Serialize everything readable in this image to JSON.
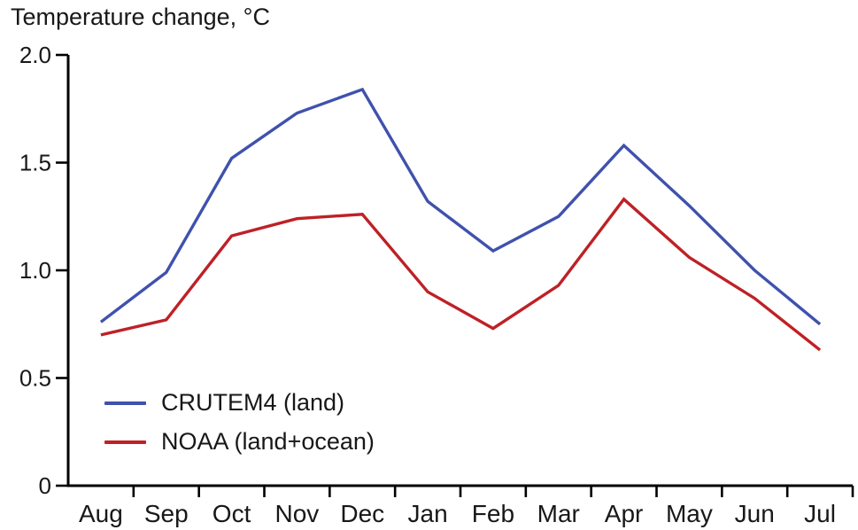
{
  "page": {
    "background": "#ffffff"
  },
  "chart": {
    "title": "Temperature change, °C"
  },
  "legend": {
    "items": [
      {
        "label": "CRUTEM4 (land)",
        "color": "#4051ad"
      },
      {
        "label": "NOAA (land+ocean)",
        "color": "#be2126"
      }
    ]
  },
  "chart_data": {
    "type": "line",
    "title": "Temperature change, °C",
    "categories": [
      "Aug",
      "Sep",
      "Oct",
      "Nov",
      "Dec",
      "Jan",
      "Feb",
      "Mar",
      "Apr",
      "May",
      "Jun",
      "Jul"
    ],
    "series": [
      {
        "name": "CRUTEM4 (land)",
        "color": "#4051ad",
        "values": [
          0.76,
          0.99,
          1.52,
          1.73,
          1.84,
          1.32,
          1.09,
          1.25,
          1.58,
          1.3,
          1.0,
          0.75
        ]
      },
      {
        "name": "NOAA (land+ocean)",
        "color": "#be2126",
        "values": [
          0.7,
          0.77,
          1.16,
          1.24,
          1.26,
          0.9,
          0.73,
          0.93,
          1.33,
          1.06,
          0.87,
          0.63
        ]
      }
    ],
    "xlabel": "",
    "ylabel": "Temperature change, °C",
    "ylim": [
      0,
      2.0
    ],
    "yticks": [
      {
        "value": 0,
        "label": "0"
      },
      {
        "value": 0.5,
        "label": "0.5"
      },
      {
        "value": 1.0,
        "label": "1.0"
      },
      {
        "value": 1.5,
        "label": "1.5"
      },
      {
        "value": 2.0,
        "label": "2.0"
      }
    ],
    "grid": false,
    "legend_position": "inside-lower-left",
    "axis_color": "#000000",
    "text_color": "#181818"
  }
}
